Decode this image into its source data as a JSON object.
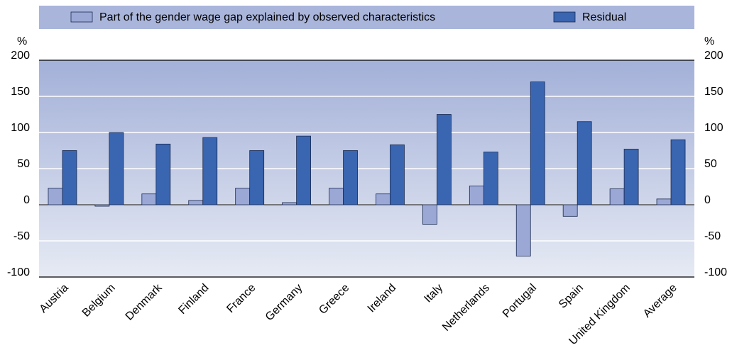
{
  "chart_data": {
    "type": "bar",
    "y_label": "%",
    "y2_label": "%",
    "categories": [
      "Austria",
      "Belgium",
      "Denmark",
      "Finland",
      "France",
      "Germany",
      "Greece",
      "Ireland",
      "Italy",
      "Netherlands",
      "Portugal",
      "Spain",
      "United Kingdom",
      "Average"
    ],
    "series": [
      {
        "name": "Part of the gender wage gap explained by observed characteristics",
        "color": "#9ba8d6",
        "values": [
          23,
          -2,
          15,
          6,
          23,
          3,
          23,
          15,
          -27,
          26,
          -71,
          -16,
          22,
          8
        ]
      },
      {
        "name": "Residual",
        "color": "#3a65b0",
        "values": [
          75,
          100,
          84,
          93,
          75,
          95,
          75,
          83,
          125,
          73,
          170,
          115,
          77,
          90
        ]
      }
    ],
    "ylim": [
      -100,
      200
    ],
    "yticks": [
      -100,
      -50,
      0,
      50,
      100,
      150,
      200
    ],
    "y2lim": [
      -100,
      200
    ],
    "y2ticks": [
      -100,
      -50,
      0,
      50,
      100,
      150,
      200
    ],
    "grid": true,
    "legend": "top"
  }
}
